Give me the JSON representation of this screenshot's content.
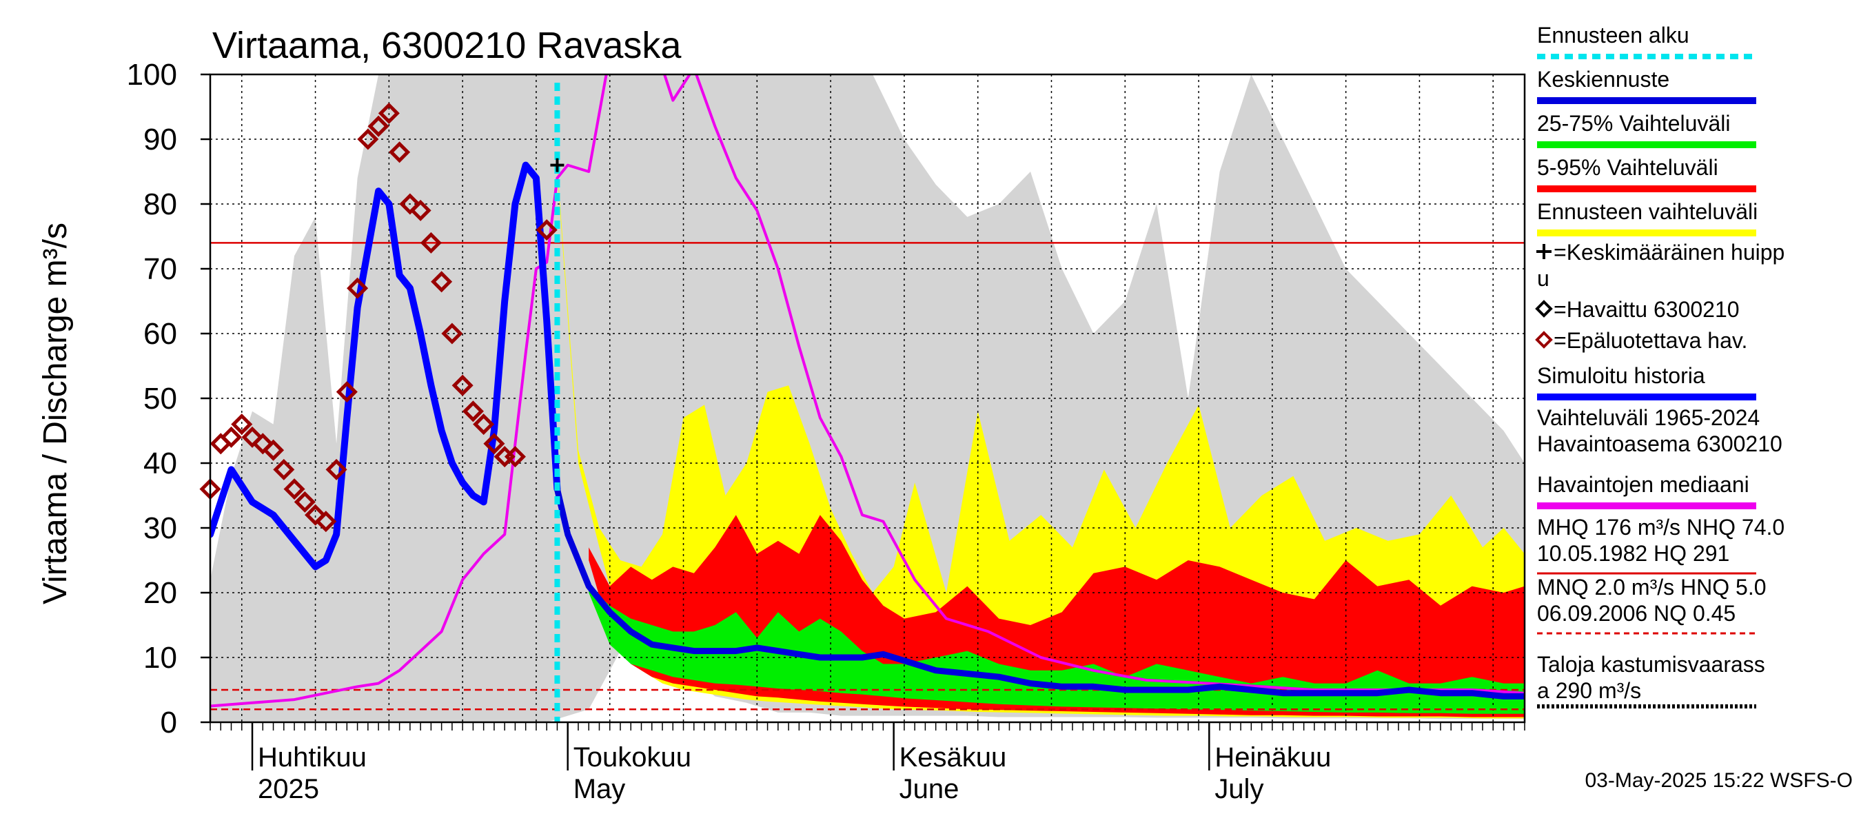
{
  "chart_data": {
    "type": "area",
    "title": "Virtaama, 6300210 Ravaska",
    "ylabel": "Virtaama / Discharge   m³/s",
    "ylim": [
      0,
      100
    ],
    "yticks": [
      0,
      10,
      20,
      30,
      40,
      50,
      60,
      70,
      80,
      90,
      100
    ],
    "grid": true,
    "x_range": [
      "2025-03-28",
      "2025-07-31"
    ],
    "month_labels": [
      {
        "date": "2025-04-01",
        "fi": "Huhtikuu",
        "en": "2025"
      },
      {
        "date": "2025-05-01",
        "fi": "Toukokuu",
        "en": "May"
      },
      {
        "date": "2025-06-01",
        "fi": "Kesäkuu",
        "en": "June"
      },
      {
        "date": "2025-07-01",
        "fi": "Heinäkuu",
        "en": "July"
      }
    ],
    "colors": {
      "history_range": "#d4d4d4",
      "forecast_range": "#ffff00",
      "p5_95": "#ff0000",
      "p25_75": "#00ee00",
      "mean_forecast": "#0000dd",
      "simulated_history": "#0000ff",
      "median": "#ee00ee",
      "forecast_start": "#00e5ee",
      "observed": "#990000",
      "reference_line": "#dd0000"
    },
    "forecast_start": "2025-04-30",
    "mean_peak": {
      "date": "2025-04-30",
      "value": 86
    },
    "reference_lines": [
      {
        "value": 74.0,
        "style": "solid"
      },
      {
        "value": 5.0,
        "style": "dashed"
      },
      {
        "value": 2.0,
        "style": "dashed"
      }
    ],
    "series": [
      {
        "name": "Vaihteluväli 1965-2024",
        "type": "band",
        "x": [
          "2025-03-28",
          "2025-03-30",
          "2025-04-01",
          "2025-04-03",
          "2025-04-05",
          "2025-04-07",
          "2025-04-09",
          "2025-04-11",
          "2025-04-13",
          "2025-04-14",
          "2025-04-16",
          "2025-04-18",
          "2025-04-19",
          "2025-04-21",
          "2025-04-23",
          "2025-04-25",
          "2025-04-27",
          "2025-04-29",
          "2025-05-01",
          "2025-05-03",
          "2025-05-06",
          "2025-05-09",
          "2025-05-12",
          "2025-05-15",
          "2025-05-18",
          "2025-05-21",
          "2025-05-24",
          "2025-05-27",
          "2025-05-30",
          "2025-06-02",
          "2025-06-05",
          "2025-06-08",
          "2025-06-11",
          "2025-06-14",
          "2025-06-17",
          "2025-06-20",
          "2025-06-23",
          "2025-06-26",
          "2025-06-29",
          "2025-07-02",
          "2025-07-05",
          "2025-07-08",
          "2025-07-11",
          "2025-07-14",
          "2025-07-17",
          "2025-07-20",
          "2025-07-23",
          "2025-07-26",
          "2025-07-29",
          "2025-07-31"
        ],
        "low": [
          0,
          0,
          0,
          0,
          0,
          0,
          0,
          0,
          0,
          0,
          0,
          0,
          0,
          0,
          0,
          0,
          0,
          0,
          1,
          2,
          11,
          10,
          8,
          4,
          3,
          1.5,
          1.5,
          1,
          1,
          1,
          1,
          1,
          0.8,
          0.8,
          0.8,
          0.8,
          0.8,
          0.7,
          0.7,
          0.7,
          0.7,
          0.6,
          0.6,
          0.6,
          0.6,
          0.6,
          0.5,
          0.5,
          0.5,
          0.5
        ],
        "high": [
          22,
          38,
          48,
          46,
          72,
          78,
          43,
          84,
          100,
          100,
          100,
          100,
          100,
          100,
          100,
          100,
          100,
          100,
          100,
          100,
          100,
          100,
          100,
          100,
          100,
          100,
          100,
          100,
          100,
          90,
          83,
          78,
          80,
          85,
          70,
          60,
          65,
          80,
          50,
          85,
          100,
          90,
          80,
          70,
          65,
          60,
          55,
          50,
          45,
          40
        ]
      },
      {
        "name": "Ennusteen vaihteluväli",
        "type": "band",
        "x": [
          "2025-04-30",
          "2025-05-02",
          "2025-05-04",
          "2025-05-06",
          "2025-05-08",
          "2025-05-10",
          "2025-05-12",
          "2025-05-14",
          "2025-05-16",
          "2025-05-18",
          "2025-05-20",
          "2025-05-22",
          "2025-05-24",
          "2025-05-26",
          "2025-05-28",
          "2025-05-30",
          "2025-06-01",
          "2025-06-03",
          "2025-06-06",
          "2025-06-09",
          "2025-06-12",
          "2025-06-15",
          "2025-06-18",
          "2025-06-21",
          "2025-06-24",
          "2025-06-27",
          "2025-06-30",
          "2025-07-03",
          "2025-07-06",
          "2025-07-09",
          "2025-07-12",
          "2025-07-15",
          "2025-07-18",
          "2025-07-21",
          "2025-07-24",
          "2025-07-27",
          "2025-07-29",
          "2025-07-31"
        ],
        "low": [
          85,
          40,
          27,
          15,
          8,
          6,
          5,
          4.5,
          4,
          3.5,
          3.2,
          3,
          2.8,
          2.6,
          2.4,
          2.2,
          2,
          1.9,
          1.8,
          1.6,
          1.5,
          1.4,
          1.3,
          1.2,
          1.1,
          1,
          1,
          0.9,
          0.9,
          0.8,
          0.8,
          0.8,
          0.7,
          0.7,
          0.7,
          0.6,
          0.6,
          0.6
        ],
        "high": [
          86,
          42,
          30,
          25,
          24,
          29,
          47,
          49,
          35,
          40,
          51,
          52,
          43,
          33,
          26,
          20,
          24,
          37,
          20,
          48,
          28,
          32,
          27,
          39,
          30,
          40,
          49,
          30,
          35,
          38,
          28,
          30,
          28,
          29,
          35,
          27,
          30,
          26
        ]
      },
      {
        "name": "5-95% Vaihteluväli",
        "type": "band",
        "x": [
          "2025-05-03",
          "2025-05-05",
          "2025-05-07",
          "2025-05-09",
          "2025-05-11",
          "2025-05-13",
          "2025-05-15",
          "2025-05-17",
          "2025-05-19",
          "2025-05-21",
          "2025-05-23",
          "2025-05-25",
          "2025-05-27",
          "2025-05-29",
          "2025-05-31",
          "2025-06-02",
          "2025-06-05",
          "2025-06-08",
          "2025-06-11",
          "2025-06-14",
          "2025-06-17",
          "2025-06-20",
          "2025-06-23",
          "2025-06-26",
          "2025-06-29",
          "2025-07-02",
          "2025-07-05",
          "2025-07-08",
          "2025-07-11",
          "2025-07-14",
          "2025-07-17",
          "2025-07-20",
          "2025-07-23",
          "2025-07-26",
          "2025-07-29",
          "2025-07-31"
        ],
        "low": [
          25,
          14,
          9,
          7,
          6,
          5.5,
          5,
          4.5,
          4,
          3.8,
          3.5,
          3.2,
          3,
          2.8,
          2.6,
          2.4,
          2.2,
          2,
          1.9,
          1.8,
          1.7,
          1.6,
          1.5,
          1.4,
          1.3,
          1.2,
          1.1,
          1.1,
          1,
          1,
          0.9,
          0.9,
          0.9,
          0.8,
          0.8,
          0.8
        ],
        "high": [
          27,
          21,
          24,
          22,
          24,
          23,
          27,
          32,
          26,
          28,
          26,
          32,
          28,
          22,
          18,
          16,
          17,
          21,
          16,
          15,
          17,
          23,
          24,
          22,
          25,
          24,
          22,
          20,
          19,
          25,
          21,
          22,
          18,
          21,
          20,
          21
        ]
      },
      {
        "name": "25-75% Vaihteluväli",
        "type": "band",
        "x": [
          "2025-05-03",
          "2025-05-05",
          "2025-05-07",
          "2025-05-09",
          "2025-05-11",
          "2025-05-13",
          "2025-05-15",
          "2025-05-17",
          "2025-05-19",
          "2025-05-21",
          "2025-05-23",
          "2025-05-25",
          "2025-05-27",
          "2025-05-29",
          "2025-05-31",
          "2025-06-02",
          "2025-06-05",
          "2025-06-08",
          "2025-06-11",
          "2025-06-14",
          "2025-06-17",
          "2025-06-20",
          "2025-06-23",
          "2025-06-26",
          "2025-06-29",
          "2025-07-02",
          "2025-07-05",
          "2025-07-08",
          "2025-07-11",
          "2025-07-14",
          "2025-07-17",
          "2025-07-20",
          "2025-07-23",
          "2025-07-26",
          "2025-07-29",
          "2025-07-31"
        ],
        "low": [
          20,
          12,
          9,
          8,
          7,
          6.5,
          6,
          5.8,
          5.5,
          5.2,
          5,
          4.8,
          4.5,
          4.3,
          4,
          3.7,
          3.4,
          3.1,
          2.8,
          2.6,
          2.4,
          2.3,
          2.2,
          2.1,
          2,
          1.9,
          1.8,
          1.7,
          1.6,
          1.5,
          1.5,
          1.4,
          1.4,
          1.3,
          1.3,
          1.3
        ],
        "high": [
          21,
          18,
          16,
          15,
          14,
          14,
          15,
          17,
          13,
          17,
          14,
          16,
          14,
          11,
          9,
          9,
          10,
          11,
          9,
          8,
          8,
          9,
          7,
          9,
          8,
          7,
          6,
          7,
          6,
          6,
          8,
          6,
          6,
          7,
          6,
          6
        ]
      },
      {
        "name": "Havaintojen mediaani",
        "type": "line",
        "x": [
          "2025-03-28",
          "2025-04-01",
          "2025-04-05",
          "2025-04-08",
          "2025-04-11",
          "2025-04-13",
          "2025-04-15",
          "2025-04-17",
          "2025-04-19",
          "2025-04-21",
          "2025-04-23",
          "2025-04-25",
          "2025-04-27",
          "2025-04-28",
          "2025-04-29",
          "2025-04-30",
          "2025-05-01",
          "2025-05-03",
          "2025-05-05",
          "2025-05-07",
          "2025-05-09",
          "2025-05-10",
          "2025-05-11",
          "2025-05-13",
          "2025-05-15",
          "2025-05-17",
          "2025-05-19",
          "2025-05-21",
          "2025-05-23",
          "2025-05-25",
          "2025-05-27",
          "2025-05-29",
          "2025-05-31",
          "2025-06-03",
          "2025-06-06",
          "2025-06-10",
          "2025-06-15",
          "2025-06-20",
          "2025-06-25",
          "2025-07-01",
          "2025-07-06",
          "2025-07-11",
          "2025-07-16",
          "2025-07-21",
          "2025-07-26",
          "2025-07-31"
        ],
        "y": [
          2.5,
          3,
          3.5,
          4.5,
          5.5,
          6,
          8,
          11,
          14,
          22,
          26,
          29,
          57,
          70,
          71,
          84,
          86,
          85,
          103,
          107,
          108,
          101,
          96,
          101,
          92,
          84,
          79,
          70,
          58,
          47,
          41,
          32,
          31,
          22,
          16,
          14,
          10,
          8,
          6.5,
          6,
          5.5,
          5,
          5,
          5,
          5,
          4.5
        ]
      },
      {
        "name": "Simuloitu historia",
        "type": "line",
        "x": [
          "2025-03-28",
          "2025-03-30",
          "2025-04-01",
          "2025-04-03",
          "2025-04-05",
          "2025-04-07",
          "2025-04-08",
          "2025-04-09",
          "2025-04-10",
          "2025-04-11",
          "2025-04-13",
          "2025-04-14",
          "2025-04-15",
          "2025-04-16",
          "2025-04-17",
          "2025-04-18",
          "2025-04-19",
          "2025-04-20",
          "2025-04-21",
          "2025-04-22",
          "2025-04-23",
          "2025-04-24",
          "2025-04-25",
          "2025-04-26",
          "2025-04-27",
          "2025-04-28",
          "2025-04-29",
          "2025-04-30"
        ],
        "y": [
          29,
          39,
          34,
          32,
          28,
          24,
          25,
          29,
          47,
          64,
          82,
          80,
          69,
          67,
          60,
          52,
          45,
          40,
          37,
          35,
          34,
          45,
          65,
          80,
          86,
          84,
          62,
          36
        ]
      },
      {
        "name": "Keskiennuste",
        "type": "line",
        "x": [
          "2025-04-30",
          "2025-05-01",
          "2025-05-02",
          "2025-05-03",
          "2025-05-05",
          "2025-05-07",
          "2025-05-09",
          "2025-05-11",
          "2025-05-13",
          "2025-05-15",
          "2025-05-17",
          "2025-05-19",
          "2025-05-21",
          "2025-05-23",
          "2025-05-25",
          "2025-05-27",
          "2025-05-29",
          "2025-05-31",
          "2025-06-02",
          "2025-06-05",
          "2025-06-08",
          "2025-06-11",
          "2025-06-14",
          "2025-06-17",
          "2025-06-20",
          "2025-06-23",
          "2025-06-26",
          "2025-06-29",
          "2025-07-02",
          "2025-07-05",
          "2025-07-08",
          "2025-07-11",
          "2025-07-14",
          "2025-07-17",
          "2025-07-20",
          "2025-07-23",
          "2025-07-26",
          "2025-07-29",
          "2025-07-31"
        ],
        "y": [
          36,
          29,
          25,
          21,
          17,
          14,
          12,
          11.5,
          11,
          11,
          11,
          11.5,
          11,
          10.5,
          10,
          10,
          10,
          10.5,
          9.5,
          8,
          7.5,
          7,
          6,
          5.5,
          5.5,
          5,
          5,
          5,
          5.5,
          5,
          4.5,
          4.5,
          4.5,
          4.5,
          5,
          4.5,
          4.5,
          4,
          4
        ]
      },
      {
        "name": "Havaittu 6300210",
        "type": "scatter",
        "x": [],
        "y": []
      },
      {
        "name": "Epäluotettava hav.",
        "type": "scatter",
        "x": [
          "2025-03-28",
          "2025-03-29",
          "2025-03-30",
          "2025-03-31",
          "2025-04-01",
          "2025-04-02",
          "2025-04-03",
          "2025-04-04",
          "2025-04-05",
          "2025-04-06",
          "2025-04-07",
          "2025-04-08",
          "2025-04-09",
          "2025-04-10",
          "2025-04-11",
          "2025-04-12",
          "2025-04-13",
          "2025-04-14",
          "2025-04-15",
          "2025-04-16",
          "2025-04-17",
          "2025-04-18",
          "2025-04-19",
          "2025-04-20",
          "2025-04-21",
          "2025-04-22",
          "2025-04-23",
          "2025-04-24",
          "2025-04-25",
          "2025-04-26",
          "2025-04-29"
        ],
        "y": [
          36,
          43,
          44,
          46,
          44,
          43,
          42,
          39,
          36,
          34,
          32,
          31,
          39,
          51,
          67,
          90,
          92,
          94,
          88,
          80,
          79,
          74,
          68,
          60,
          52,
          48,
          46,
          43,
          41,
          41,
          76
        ]
      }
    ],
    "legend": {
      "position": "right",
      "entries": [
        {
          "label": "Ennusteen alku",
          "kind": "dotted",
          "color": "#00e5ee"
        },
        {
          "label": "Keskiennuste",
          "kind": "line",
          "color": "#0000dd"
        },
        {
          "label": "25-75% Vaihteluväli",
          "kind": "line",
          "color": "#00ee00"
        },
        {
          "label": "5-95% Vaihteluväli",
          "kind": "line",
          "color": "#ff0000"
        },
        {
          "label": "Ennusteen vaihteluväli",
          "kind": "line",
          "color": "#ffff00"
        },
        {
          "label": "=Keskimääräinen huipp",
          "label2": "u",
          "kind": "plus",
          "color": "#000000"
        },
        {
          "label": "=Havaittu 6300210",
          "kind": "diamond",
          "color": "#000000"
        },
        {
          "label": "=Epäluotettava hav.",
          "kind": "diamond",
          "color": "#990000"
        },
        {
          "label": "Simuloitu historia",
          "kind": "line",
          "color": "#0000ff"
        },
        {
          "label": "Vaihteluväli 1965-2024",
          "label2": " Havaintoasema 6300210",
          "kind": "none",
          "color": "#d4d4d4"
        },
        {
          "label": "Havaintojen mediaani",
          "kind": "line",
          "color": "#ee00ee"
        },
        {
          "label": "MHQ  176 m³/s NHQ 74.0",
          "label2": "10.05.1982 HQ  291",
          "kind": "thin",
          "color": "#dd0000"
        },
        {
          "label": "MNQ  2.0 m³/s HNQ  5.0",
          "label2": "06.09.2006 NQ 0.45",
          "kind": "dashed",
          "color": "#dd0000"
        },
        {
          "label": "Taloja kastumisvaarass",
          "label2": "a 290 m³/s",
          "kind": "blackdot",
          "color": "#000000"
        }
      ]
    }
  },
  "timestamp": "03-May-2025 15:22 WSFS-O"
}
